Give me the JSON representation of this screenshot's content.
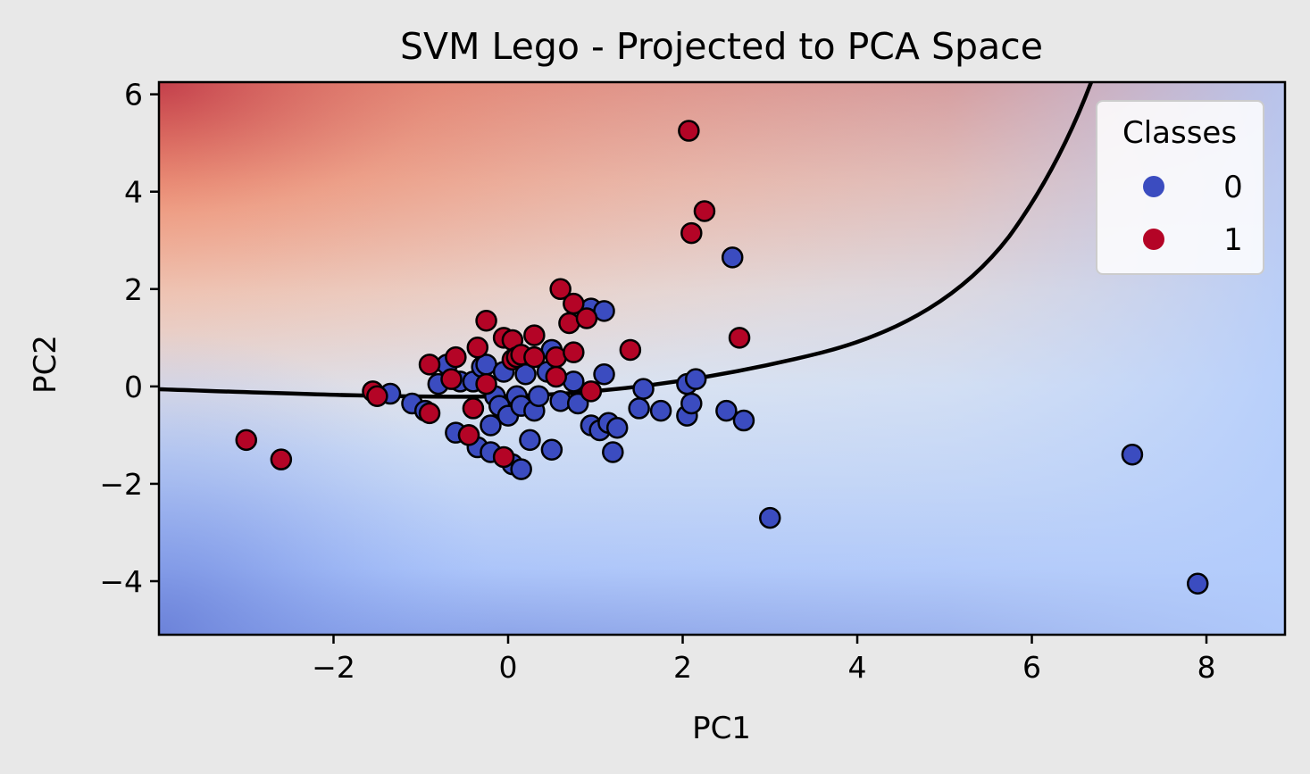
{
  "chart_data": {
    "type": "scatter",
    "title": "SVM Lego - Projected to PCA Space",
    "xlabel": "PC1",
    "ylabel": "PC2",
    "xlim": [
      -4.0,
      8.9
    ],
    "ylim": [
      -5.1,
      6.25
    ],
    "xticks": [
      -2,
      0,
      2,
      4,
      6,
      8
    ],
    "xtick_labels": [
      "−2",
      "0",
      "2",
      "4",
      "6",
      "8"
    ],
    "yticks": [
      -4,
      -2,
      0,
      2,
      4,
      6
    ],
    "ytick_labels": [
      "−4",
      "−2",
      "0",
      "2",
      "4",
      "6"
    ],
    "grid": false,
    "legend": {
      "title": "Classes",
      "position": "top-right",
      "entries": [
        {
          "label": "0",
          "color": "#3b4cc0"
        },
        {
          "label": "1",
          "color": "#b40426"
        }
      ]
    },
    "background": "decision function contour (coolwarm colormap: red above boundary, blue below)",
    "decision_boundary_color": "#000000",
    "series": [
      {
        "name": "0",
        "color": "#3b4cc0",
        "points": [
          [
            -1.35,
            -0.15
          ],
          [
            -1.1,
            -0.35
          ],
          [
            -0.95,
            -0.5
          ],
          [
            -0.8,
            0.05
          ],
          [
            -0.7,
            0.45
          ],
          [
            -0.6,
            -0.95
          ],
          [
            -0.55,
            0.1
          ],
          [
            -0.45,
            -1.0
          ],
          [
            -0.4,
            0.1
          ],
          [
            -0.35,
            -1.25
          ],
          [
            -0.3,
            0.4
          ],
          [
            -0.25,
            0.45
          ],
          [
            -0.2,
            -1.35
          ],
          [
            -0.2,
            -0.8
          ],
          [
            -0.15,
            -0.2
          ],
          [
            -0.1,
            -0.4
          ],
          [
            -0.05,
            0.3
          ],
          [
            0.0,
            -0.6
          ],
          [
            0.05,
            -1.6
          ],
          [
            0.1,
            -0.2
          ],
          [
            0.15,
            -1.7
          ],
          [
            0.15,
            -0.4
          ],
          [
            0.2,
            0.25
          ],
          [
            0.25,
            -1.1
          ],
          [
            0.3,
            -0.5
          ],
          [
            0.35,
            -0.2
          ],
          [
            0.45,
            0.3
          ],
          [
            0.5,
            0.75
          ],
          [
            0.5,
            -1.3
          ],
          [
            0.6,
            -0.3
          ],
          [
            0.75,
            0.1
          ],
          [
            0.8,
            -0.35
          ],
          [
            0.95,
            1.6
          ],
          [
            0.95,
            -0.8
          ],
          [
            1.05,
            -0.9
          ],
          [
            1.1,
            1.55
          ],
          [
            1.1,
            0.25
          ],
          [
            1.15,
            -0.75
          ],
          [
            1.2,
            -1.35
          ],
          [
            1.25,
            -0.85
          ],
          [
            1.5,
            -0.45
          ],
          [
            1.55,
            -0.05
          ],
          [
            1.75,
            -0.5
          ],
          [
            2.05,
            0.05
          ],
          [
            2.05,
            -0.6
          ],
          [
            2.1,
            -0.35
          ],
          [
            2.15,
            0.15
          ],
          [
            2.5,
            -0.5
          ],
          [
            2.57,
            2.65
          ],
          [
            2.7,
            -0.7
          ],
          [
            3.0,
            -2.7
          ],
          [
            7.15,
            -1.4
          ],
          [
            7.9,
            -4.05
          ]
        ]
      },
      {
        "name": "1",
        "color": "#b40426",
        "points": [
          [
            -3.0,
            -1.1
          ],
          [
            -2.6,
            -1.5
          ],
          [
            -1.55,
            -0.1
          ],
          [
            -1.5,
            -0.2
          ],
          [
            -0.9,
            0.45
          ],
          [
            -0.9,
            -0.55
          ],
          [
            -0.65,
            0.15
          ],
          [
            -0.6,
            0.6
          ],
          [
            -0.45,
            -1.0
          ],
          [
            -0.4,
            -0.45
          ],
          [
            -0.35,
            0.8
          ],
          [
            -0.25,
            1.35
          ],
          [
            -0.25,
            0.05
          ],
          [
            -0.05,
            1.0
          ],
          [
            0.05,
            0.95
          ],
          [
            0.05,
            0.55
          ],
          [
            0.1,
            0.6
          ],
          [
            0.15,
            0.65
          ],
          [
            -0.05,
            -1.45
          ],
          [
            0.3,
            1.05
          ],
          [
            0.3,
            0.6
          ],
          [
            0.55,
            0.6
          ],
          [
            0.55,
            0.2
          ],
          [
            0.6,
            2.0
          ],
          [
            0.7,
            1.3
          ],
          [
            0.75,
            1.7
          ],
          [
            0.75,
            0.7
          ],
          [
            0.9,
            1.4
          ],
          [
            0.95,
            -0.1
          ],
          [
            1.4,
            0.75
          ],
          [
            2.07,
            5.25
          ],
          [
            2.1,
            3.15
          ],
          [
            2.25,
            3.6
          ],
          [
            2.65,
            1.0
          ]
        ]
      }
    ]
  }
}
